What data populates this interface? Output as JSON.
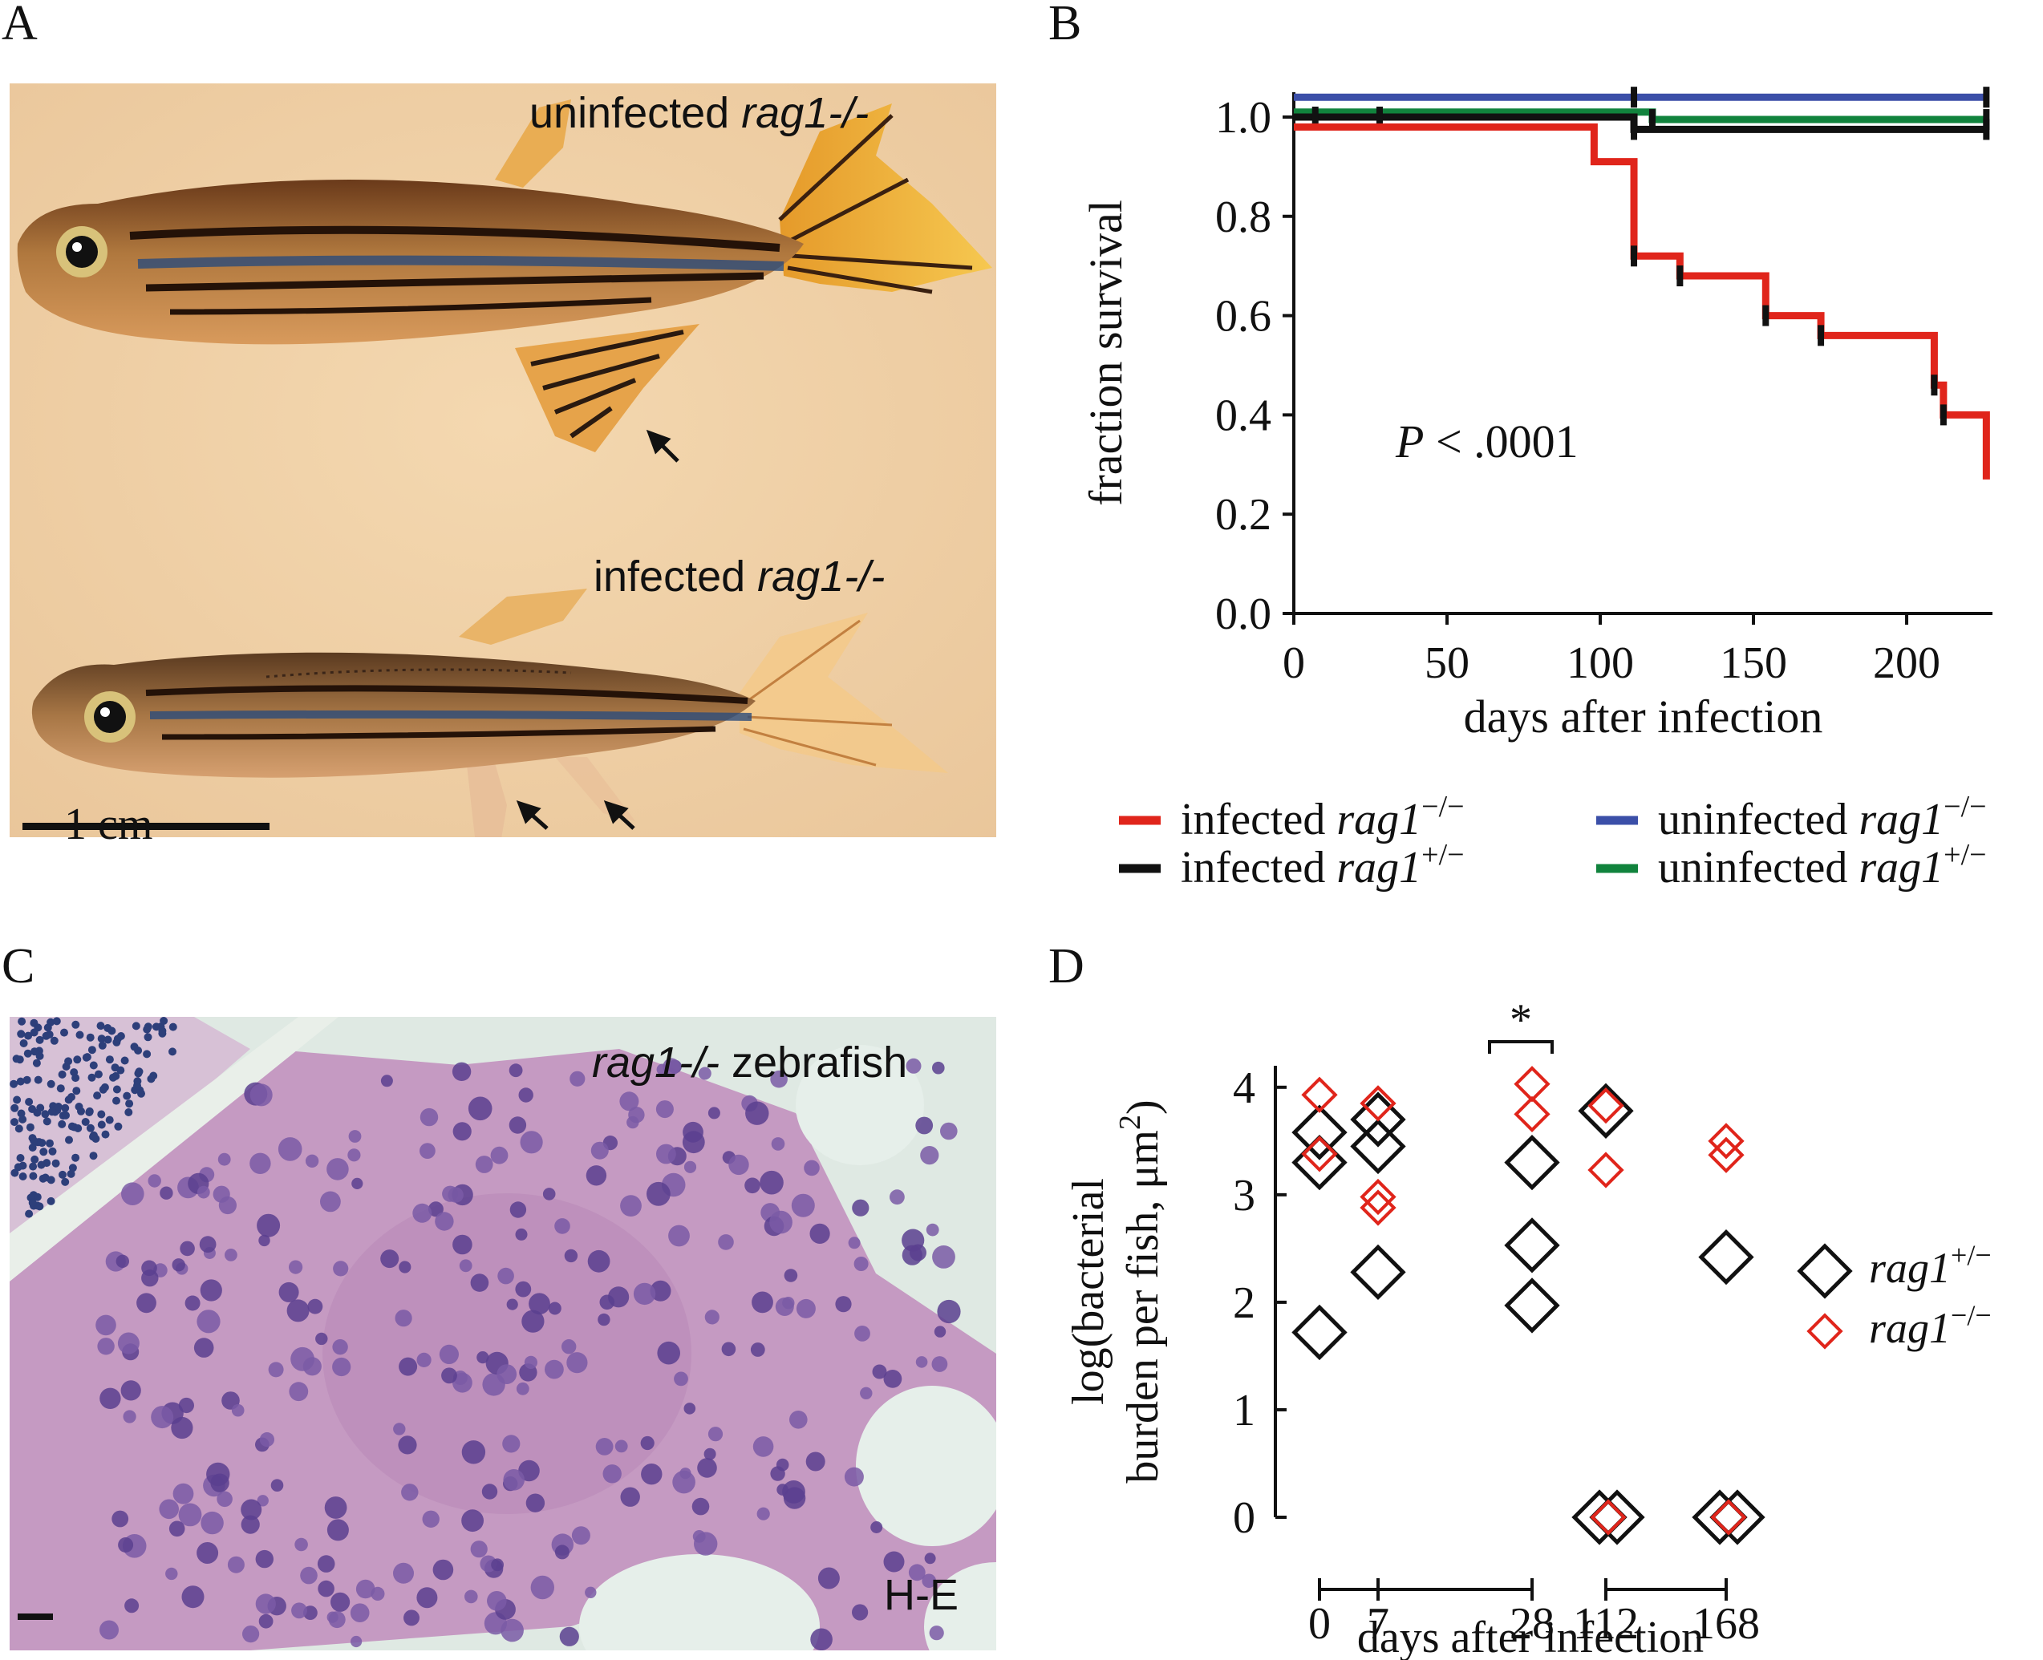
{
  "panels": {
    "A": {
      "letter": "A",
      "top_label_plain": "uninfected ",
      "top_label_italic": "rag1-/-",
      "bottom_label_plain": "infected ",
      "bottom_label_italic": "rag1-/-",
      "scale_label": "1 cm"
    },
    "B": {
      "letter": "B",
      "annotation_italic": "P",
      "annotation_rest": " < .0001"
    },
    "C": {
      "letter": "C",
      "label_italic": "rag1-/-",
      "label_rest": " zebrafish",
      "stain_label": "H-E"
    },
    "D": {
      "letter": "D",
      "significance": "*"
    }
  },
  "colors": {
    "red": "#e0251b",
    "black": "#111111",
    "blue": "#3b4fa8",
    "green": "#11833d",
    "photo_bg_A": "#f0d2a8",
    "photo_bg_C": "#dce8e2"
  },
  "chart_data": [
    {
      "id": "B",
      "type": "line",
      "step": true,
      "xlabel": "days after infection",
      "ylabel": "fraction survival",
      "xlim": [
        0,
        228
      ],
      "ylim": [
        0,
        1.05
      ],
      "x_ticks": [
        0,
        50,
        100,
        150,
        200
      ],
      "x_tick_labels": [
        "0",
        "50",
        "100",
        "150",
        "200"
      ],
      "y_ticks": [
        0.0,
        0.2,
        0.4,
        0.6,
        0.8,
        1.0
      ],
      "y_tick_labels": [
        "0.0",
        "0.2",
        "0.4",
        "0.6",
        "0.8",
        "1.0"
      ],
      "legend_position": "bottom",
      "series": [
        {
          "name_plain": "infected ",
          "name_italic": "rag1",
          "name_sup": "−/−",
          "color": "#e0251b",
          "x": [
            0,
            98,
            98,
            111,
            111,
            126,
            126,
            154,
            154,
            172,
            172,
            209,
            209,
            212,
            212,
            226,
            226
          ],
          "y": [
            0.98,
            0.98,
            0.91,
            0.91,
            0.72,
            0.72,
            0.68,
            0.68,
            0.6,
            0.6,
            0.56,
            0.56,
            0.46,
            0.46,
            0.4,
            0.4,
            0.27
          ],
          "censored_x": [
            111,
            126,
            154,
            172,
            209,
            212
          ]
        },
        {
          "name_plain": "infected ",
          "name_italic": "rag1",
          "name_sup": "+/−",
          "color": "#111111",
          "x": [
            0,
            111,
            111,
            226
          ],
          "y": [
            1.0,
            1.0,
            0.975,
            0.975
          ],
          "censored_x": [
            7,
            28,
            111,
            226
          ]
        },
        {
          "name_plain": "uninfected ",
          "name_italic": "rag1",
          "name_sup": "−/−",
          "color": "#3b4fa8",
          "x": [
            0,
            226
          ],
          "y": [
            1.04,
            1.04
          ],
          "censored_x": [
            111,
            226
          ]
        },
        {
          "name_plain": "uninfected ",
          "name_italic": "rag1",
          "name_sup": "+/−",
          "color": "#11833d",
          "x": [
            0,
            117,
            117,
            226
          ],
          "y": [
            1.01,
            1.01,
            0.995,
            0.995
          ],
          "censored_x": [
            117,
            226
          ]
        }
      ]
    },
    {
      "id": "D",
      "type": "scatter",
      "xlabel": "days after infection",
      "ylabel_line1": "log(bacterial",
      "ylabel_line2": "burden per fish, μm",
      "ylabel_sup": "2",
      "ylabel_close": ")",
      "x_categories": [
        "0",
        "7",
        "28",
        "112",
        "168"
      ],
      "y_ticks": [
        0,
        1,
        2,
        3,
        4
      ],
      "y_tick_labels": [
        "0",
        "1",
        "2",
        "3",
        "4"
      ],
      "ylim": [
        0,
        4.2
      ],
      "legend_position": "right",
      "series": [
        {
          "name_italic": "rag1",
          "name_sup": "+/−",
          "color": "#111111",
          "points": [
            {
              "x": "0",
              "y": 3.58
            },
            {
              "x": "0",
              "y": 3.3
            },
            {
              "x": "0",
              "y": 1.72
            },
            {
              "x": "7",
              "y": 3.7
            },
            {
              "x": "7",
              "y": 3.45
            },
            {
              "x": "7",
              "y": 2.28
            },
            {
              "x": "28",
              "y": 3.3
            },
            {
              "x": "28",
              "y": 2.53
            },
            {
              "x": "28",
              "y": 1.97
            },
            {
              "x": "112",
              "y": 3.78
            },
            {
              "x": "112",
              "y": 0
            },
            {
              "x": "112",
              "y": 0
            },
            {
              "x": "168",
              "y": 2.42
            },
            {
              "x": "168",
              "y": 0
            },
            {
              "x": "168",
              "y": 0
            }
          ]
        },
        {
          "name_italic": "rag1",
          "name_sup": "−/−",
          "color": "#e0251b",
          "points": [
            {
              "x": "0",
              "y": 3.93
            },
            {
              "x": "0",
              "y": 3.38
            },
            {
              "x": "7",
              "y": 3.85
            },
            {
              "x": "7",
              "y": 2.98
            },
            {
              "x": "7",
              "y": 2.88
            },
            {
              "x": "28",
              "y": 4.03
            },
            {
              "x": "28",
              "y": 3.75
            },
            {
              "x": "112",
              "y": 3.83
            },
            {
              "x": "112",
              "y": 3.23
            },
            {
              "x": "112",
              "y": 0
            },
            {
              "x": "168",
              "y": 3.5
            },
            {
              "x": "168",
              "y": 3.37
            },
            {
              "x": "168",
              "y": 0
            }
          ]
        }
      ],
      "brackets": [
        {
          "categories": [
            "0",
            "7",
            "28"
          ]
        },
        {
          "categories": [
            "112",
            "168"
          ]
        }
      ]
    }
  ]
}
